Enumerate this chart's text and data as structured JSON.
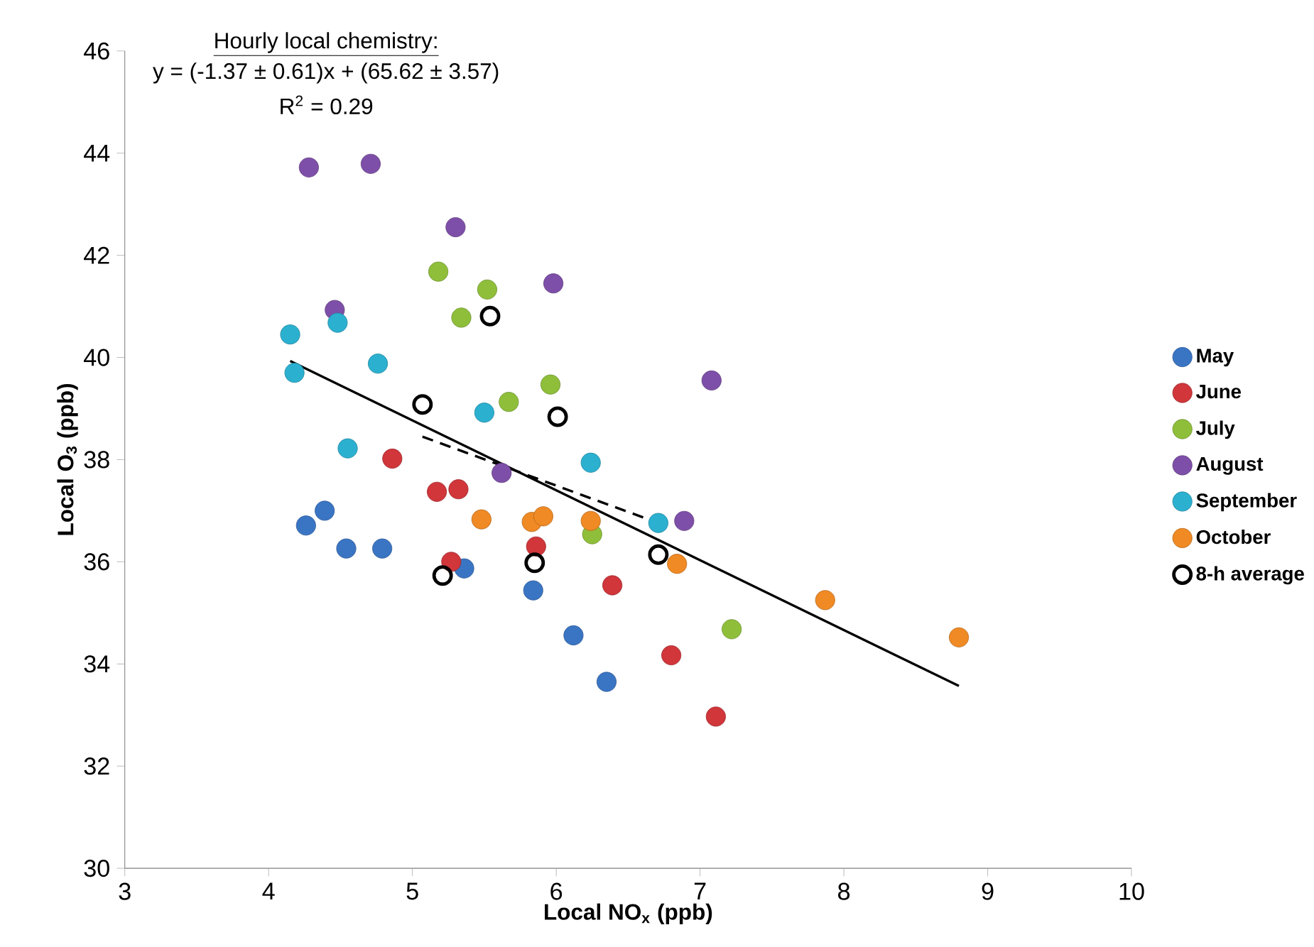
{
  "chart_data": {
    "type": "scatter",
    "xlabel": "Local NO$_{x}$ (ppb)",
    "ylabel": "Local O$_{3}$ (ppb)",
    "annotations": [
      "Hourly local chemistry:",
      "y  = (-1.37 ± 0.61)x + (65.62 ± 3.57)",
      "R$^{2}$ = 0.29"
    ],
    "xlim": [
      3,
      10
    ],
    "ylim": [
      30,
      46
    ],
    "xticks": [
      3,
      4,
      5,
      6,
      7,
      8,
      9,
      10
    ],
    "yticks": [
      30,
      32,
      34,
      36,
      38,
      40,
      42,
      44,
      46
    ],
    "legend": "right",
    "series": [
      {
        "name": "May",
        "color": "#3a75c4",
        "marker": "circle",
        "x": [
          4.26,
          4.39,
          4.54,
          4.79,
          5.36,
          5.84,
          6.12,
          6.35
        ],
        "values": [
          36.71,
          37.0,
          36.26,
          36.26,
          35.87,
          35.44,
          34.56,
          33.65
        ]
      },
      {
        "name": "June",
        "color": "#d0363a",
        "marker": "circle",
        "x": [
          4.86,
          5.17,
          5.32,
          5.27,
          5.86,
          6.39,
          6.8,
          7.11
        ],
        "values": [
          38.02,
          37.37,
          37.42,
          36.0,
          36.3,
          35.54,
          34.17,
          32.97
        ]
      },
      {
        "name": "July",
        "color": "#8fbf3a",
        "marker": "circle",
        "x": [
          5.18,
          5.52,
          5.34,
          5.67,
          5.96,
          6.25,
          7.22
        ],
        "values": [
          41.68,
          41.33,
          40.78,
          39.13,
          39.47,
          36.54,
          34.68
        ]
      },
      {
        "name": "August",
        "color": "#7e4fa8",
        "marker": "circle",
        "x": [
          4.28,
          4.71,
          5.3,
          4.46,
          5.98,
          5.62,
          6.89,
          7.08
        ],
        "values": [
          43.72,
          43.79,
          42.55,
          40.93,
          41.45,
          37.74,
          36.8,
          39.55
        ]
      },
      {
        "name": "September",
        "color": "#2bb0d0",
        "marker": "circle",
        "x": [
          4.15,
          4.48,
          4.18,
          4.76,
          4.55,
          5.5,
          6.24,
          6.71
        ],
        "values": [
          40.45,
          40.68,
          39.7,
          39.88,
          38.22,
          38.92,
          37.94,
          36.76
        ]
      },
      {
        "name": "October",
        "color": "#f08a24",
        "marker": "circle",
        "x": [
          5.48,
          5.83,
          5.91,
          6.24,
          6.84,
          7.87,
          8.8
        ],
        "values": [
          36.83,
          36.78,
          36.89,
          36.8,
          35.96,
          35.25,
          34.52
        ]
      },
      {
        "name": "8-h average",
        "color": "#000000",
        "marker": "open circle",
        "x": [
          5.54,
          5.07,
          6.01,
          5.85,
          5.21,
          6.71
        ],
        "values": [
          40.81,
          39.08,
          38.84,
          35.98,
          35.73,
          36.14
        ]
      },
      {
        "type": "line",
        "line_style": "solid",
        "color": "#000000",
        "x": [
          4.15,
          8.8
        ],
        "values": [
          39.93,
          33.57
        ]
      },
      {
        "type": "line",
        "line_style": "dashed",
        "color": "#000000",
        "x": [
          5.07,
          6.71
        ],
        "values": [
          38.45,
          36.76
        ]
      }
    ]
  }
}
